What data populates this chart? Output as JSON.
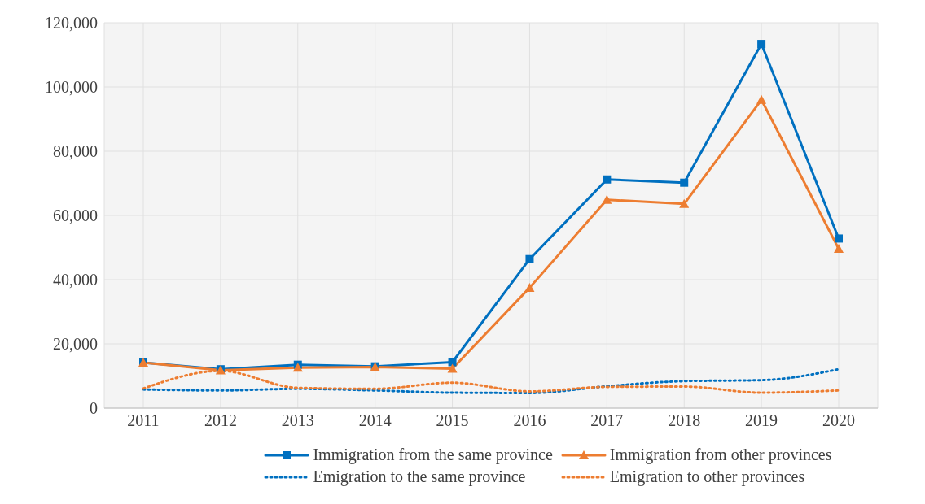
{
  "chart_data": {
    "type": "line",
    "categories": [
      "2011",
      "2012",
      "2013",
      "2014",
      "2015",
      "2016",
      "2017",
      "2018",
      "2019",
      "2020"
    ],
    "series": [
      {
        "name": "Immigration from the same province",
        "color": "#0070c0",
        "marker": "square",
        "line_style": "solid",
        "values": [
          14200,
          12100,
          13500,
          13000,
          14300,
          46400,
          71200,
          70200,
          113400,
          52800
        ]
      },
      {
        "name": "Immigration from other provinces",
        "color": "#ed7d31",
        "marker": "triangle",
        "line_style": "solid",
        "values": [
          14200,
          11800,
          12600,
          12800,
          12300,
          37500,
          64900,
          63600,
          96000,
          49600
        ]
      },
      {
        "name": "Emigration to the same province",
        "color": "#0070c0",
        "marker": "none",
        "line_style": "dotted",
        "values": [
          5800,
          5500,
          6000,
          5500,
          4800,
          4700,
          6800,
          8400,
          8700,
          12100
        ]
      },
      {
        "name": "Emigration to other provinces",
        "color": "#ed7d31",
        "marker": "none",
        "line_style": "dotted",
        "values": [
          6100,
          11600,
          6300,
          6000,
          7900,
          5200,
          6600,
          6700,
          4800,
          5500
        ]
      }
    ],
    "ylim": [
      0,
      120000
    ],
    "yticks": [
      {
        "value": 0,
        "label": "0"
      },
      {
        "value": 20000,
        "label": "20,000"
      },
      {
        "value": 40000,
        "label": "40,000"
      },
      {
        "value": 60000,
        "label": "60,000"
      },
      {
        "value": 80000,
        "label": "80,000"
      },
      {
        "value": 100000,
        "label": "100,000"
      },
      {
        "value": 120000,
        "label": "120,000"
      }
    ],
    "grid": true,
    "legend": "bottom"
  }
}
